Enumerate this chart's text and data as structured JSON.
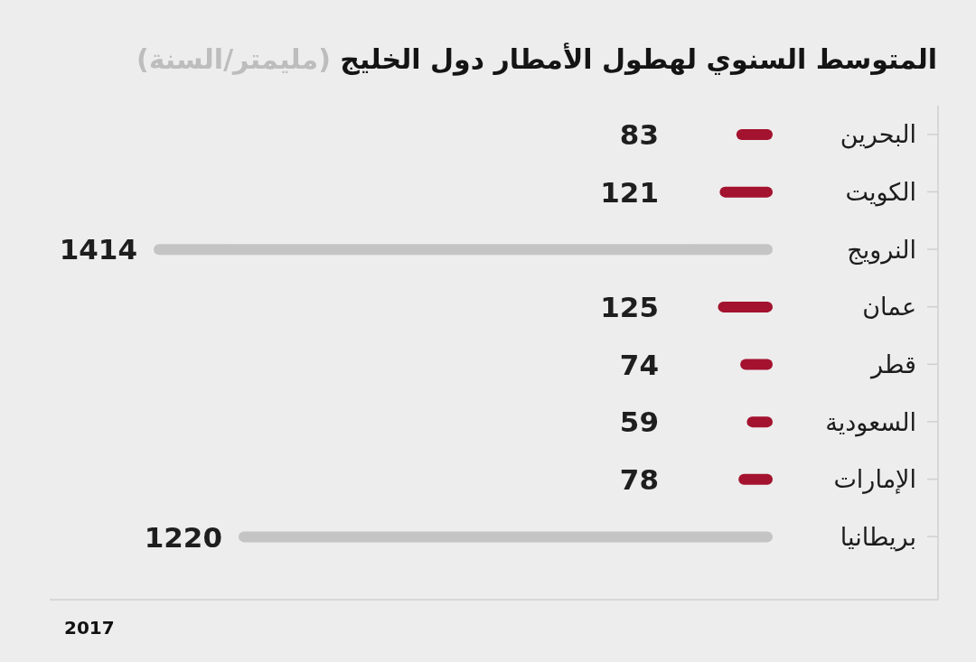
{
  "chart_data": {
    "type": "bar",
    "orientation": "horizontal",
    "title": "المتوسط السنوي لهطول الأمطار دول الخليج",
    "subtitle": "(مليمتر/السنة)",
    "categories": [
      "البحرين",
      "الكويت",
      "النرويج",
      "عمان",
      "قطر",
      "السعودية",
      "الإمارات",
      "بريطانيا"
    ],
    "values": [
      83,
      121,
      1414,
      125,
      74,
      59,
      78,
      1220
    ],
    "colors": [
      "#a3122e",
      "#a3122e",
      "#c4c4c4",
      "#a3122e",
      "#a3122e",
      "#a3122e",
      "#a3122e",
      "#c4c4c4"
    ],
    "data_labels": true,
    "annotations": [
      "2017"
    ]
  }
}
